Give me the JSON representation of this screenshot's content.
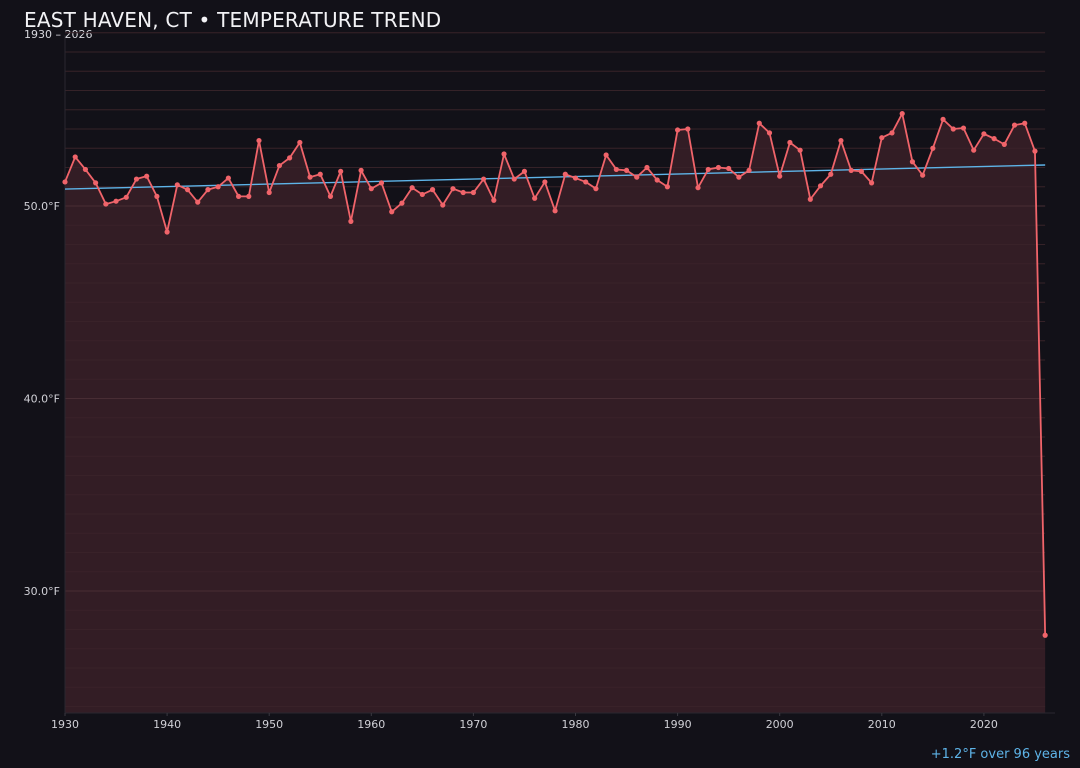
{
  "header": {
    "title": "EAST HAVEN, CT • TEMPERATURE TREND",
    "subtitle": "1930 – 2026"
  },
  "footer": {
    "trend_note": "+1.2°F over 96 years"
  },
  "colors": {
    "background": "#121118",
    "line": "#f0646a",
    "area_fill": "#361f26",
    "trend": "#5eb4e8",
    "grid": "#3a2a30"
  },
  "chart_data": {
    "type": "line",
    "title": "EAST HAVEN, CT • TEMPERATURE TREND",
    "subtitle": "1930 – 2026",
    "xlabel": "",
    "ylabel": "",
    "x_ticks": [
      1930,
      1940,
      1950,
      1960,
      1970,
      1980,
      1990,
      2000,
      2010,
      2020
    ],
    "y_ticks": [
      {
        "value": 30,
        "label": "30.0°F"
      },
      {
        "value": 40,
        "label": "40.0°F"
      },
      {
        "value": 50,
        "label": "50.0°F"
      }
    ],
    "xlim": [
      1930,
      2027
    ],
    "ylim": [
      23.9,
      59.7
    ],
    "grid": true,
    "legend": null,
    "series": [
      {
        "name": "Annual mean temperature (°F)",
        "style": "line-with-markers-and-area",
        "x": [
          1930,
          1931,
          1932,
          1933,
          1934,
          1935,
          1936,
          1937,
          1938,
          1939,
          1940,
          1941,
          1942,
          1943,
          1944,
          1945,
          1946,
          1947,
          1948,
          1949,
          1950,
          1951,
          1952,
          1953,
          1954,
          1955,
          1956,
          1957,
          1958,
          1959,
          1960,
          1961,
          1962,
          1963,
          1964,
          1965,
          1966,
          1967,
          1968,
          1969,
          1970,
          1971,
          1972,
          1973,
          1974,
          1975,
          1976,
          1977,
          1978,
          1979,
          1980,
          1981,
          1982,
          1983,
          1984,
          1985,
          1986,
          1987,
          1988,
          1989,
          1990,
          1991,
          1992,
          1993,
          1994,
          1995,
          1996,
          1997,
          1998,
          1999,
          2000,
          2001,
          2002,
          2003,
          2004,
          2005,
          2006,
          2007,
          2008,
          2009,
          2010,
          2011,
          2012,
          2013,
          2014,
          2015,
          2016,
          2017,
          2018,
          2019,
          2020,
          2021,
          2022,
          2023,
          2024,
          2025,
          2026
        ],
        "values": [
          51.25,
          52.55,
          51.9,
          51.2,
          50.1,
          50.25,
          50.45,
          51.4,
          51.55,
          50.5,
          48.65,
          51.1,
          50.85,
          50.2,
          50.85,
          51.0,
          51.45,
          50.5,
          50.5,
          53.4,
          50.7,
          52.1,
          52.5,
          53.3,
          51.5,
          51.65,
          50.5,
          51.8,
          49.2,
          51.85,
          50.9,
          51.2,
          49.7,
          50.15,
          50.95,
          50.6,
          50.85,
          50.05,
          50.9,
          50.7,
          50.7,
          51.4,
          50.3,
          52.7,
          51.4,
          51.8,
          50.4,
          51.25,
          49.75,
          51.65,
          51.45,
          51.25,
          50.9,
          52.65,
          51.9,
          51.85,
          51.5,
          52.0,
          51.35,
          51.0,
          53.95,
          54.0,
          50.95,
          51.9,
          52.0,
          51.95,
          51.5,
          51.85,
          54.3,
          53.8,
          51.55,
          53.3,
          52.9,
          50.35,
          51.05,
          51.65,
          53.4,
          51.85,
          51.8,
          51.2,
          53.55,
          53.8,
          54.8,
          52.3,
          51.6,
          53.0,
          54.5,
          54.0,
          54.05,
          52.9,
          53.75,
          53.5,
          53.2,
          54.2,
          54.3,
          52.85,
          27.7
        ]
      },
      {
        "name": "Linear trend",
        "style": "line",
        "x": [
          1930,
          2026
        ],
        "values": [
          50.88,
          52.13
        ]
      }
    ],
    "annotations": [
      "+1.2°F over 96 years"
    ]
  }
}
